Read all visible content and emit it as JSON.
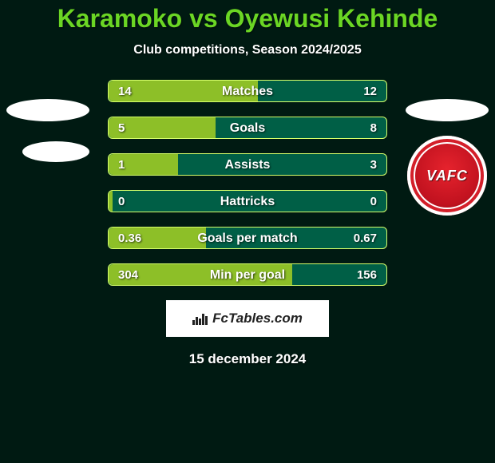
{
  "colors": {
    "background": "#001a12",
    "title": "#6bd624",
    "bar_bg": "#005f46",
    "bar_fill": "#8dbf28",
    "bar_border": "#d6ff6b"
  },
  "title": "Karamoko vs Oyewusi Kehinde",
  "subtitle": "Club competitions, Season 2024/2025",
  "club_badge": "VAFC",
  "bars": [
    {
      "label": "Matches",
      "left": "14",
      "right": "12",
      "fill_pct": 53.8
    },
    {
      "label": "Goals",
      "left": "5",
      "right": "8",
      "fill_pct": 38.5
    },
    {
      "label": "Assists",
      "left": "1",
      "right": "3",
      "fill_pct": 25.0
    },
    {
      "label": "Hattricks",
      "left": "0",
      "right": "0",
      "fill_pct": 1.4
    },
    {
      "label": "Goals per match",
      "left": "0.36",
      "right": "0.67",
      "fill_pct": 35.0
    },
    {
      "label": "Min per goal",
      "left": "304",
      "right": "156",
      "fill_pct": 66.1
    }
  ],
  "credit": "FcTables.com",
  "date": "15 december 2024"
}
